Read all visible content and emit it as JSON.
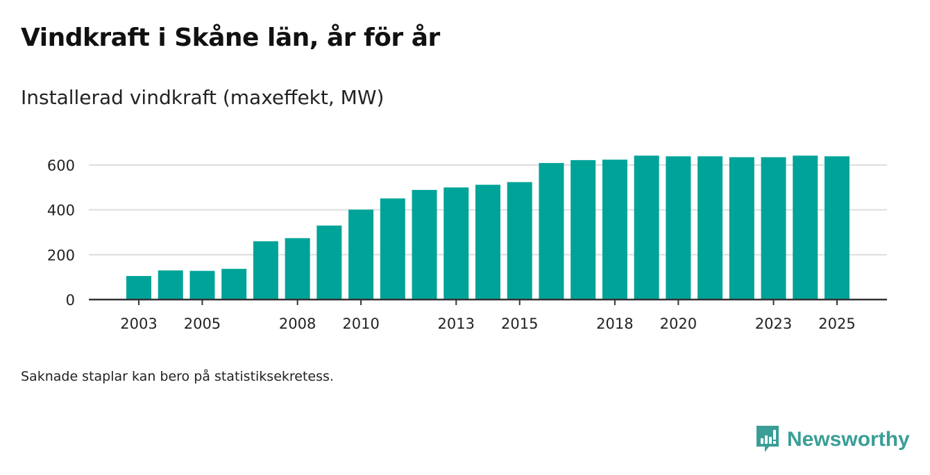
{
  "title": "Vindkraft i Skåne län, år för år",
  "subtitle": "Installerad vindkraft (maxeffekt, MW)",
  "note": "Saknade staplar kan bero på statistiksekretess.",
  "logo": "Newsworthy",
  "chart_data": {
    "type": "bar",
    "title": "Vindkraft i Skåne län, år för år",
    "ylabel": "Installerad vindkraft (maxeffekt, MW)",
    "categories": [
      2003,
      2004,
      2005,
      2006,
      2007,
      2008,
      2009,
      2010,
      2011,
      2012,
      2013,
      2014,
      2015,
      2016,
      2017,
      2018,
      2019,
      2020,
      2021,
      2022,
      2023,
      2024,
      2025
    ],
    "values": [
      105,
      130,
      128,
      137,
      260,
      274,
      330,
      401,
      451,
      489,
      500,
      512,
      524,
      609,
      622,
      624,
      642,
      639,
      639,
      635,
      635,
      642,
      639
    ],
    "xticks": [
      "2003",
      "2005",
      "2008",
      "2010",
      "2013",
      "2015",
      "2018",
      "2020",
      "2023",
      "2025"
    ],
    "yticks": [
      "0",
      "200",
      "400",
      "600"
    ],
    "ylim": [
      0,
      680
    ],
    "grid": true,
    "color": "#00a398"
  }
}
